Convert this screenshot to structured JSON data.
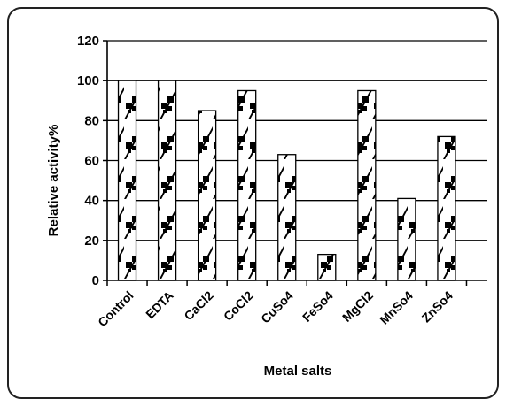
{
  "chart_data": {
    "type": "bar",
    "title": "",
    "xlabel": "Metal salts",
    "ylabel": "Relative activity%",
    "categories": [
      "Control",
      "EDTA",
      "CaCl2",
      "CoCl2",
      "CuSo4",
      "FeSo4",
      "MgCl2",
      "MnSo4",
      "ZnSo4"
    ],
    "values": [
      100,
      100,
      85,
      95,
      63,
      13,
      95,
      41,
      72
    ],
    "ylim": [
      0,
      120
    ],
    "yticks": [
      "0",
      "20",
      "40",
      "60",
      "80",
      "100",
      "120"
    ],
    "grid": true,
    "legend": "none",
    "colors": {
      "bar_fill": "#ffffff",
      "bar_pattern": "#000000",
      "grid": "#000000"
    }
  }
}
